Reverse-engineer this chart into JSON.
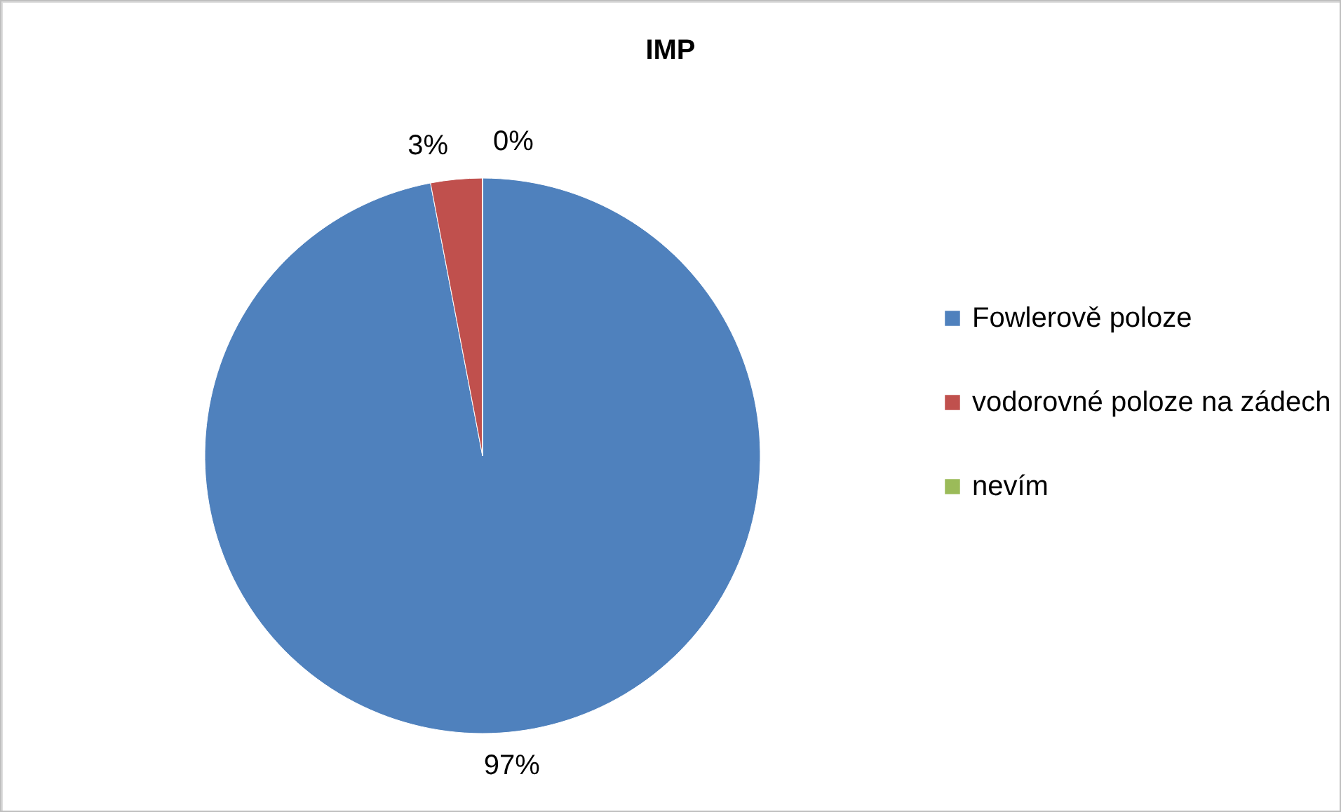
{
  "chart_data": {
    "type": "pie",
    "title": "IMP",
    "categories": [
      "Fowlerově poloze",
      "vodorovné poloze na zádech",
      "nevím"
    ],
    "values": [
      97,
      3,
      0
    ],
    "colors": [
      "#4f81bd",
      "#c0504d",
      "#9bbb59"
    ],
    "value_labels": [
      "97%",
      "3%",
      "0%"
    ],
    "legend": "right"
  }
}
